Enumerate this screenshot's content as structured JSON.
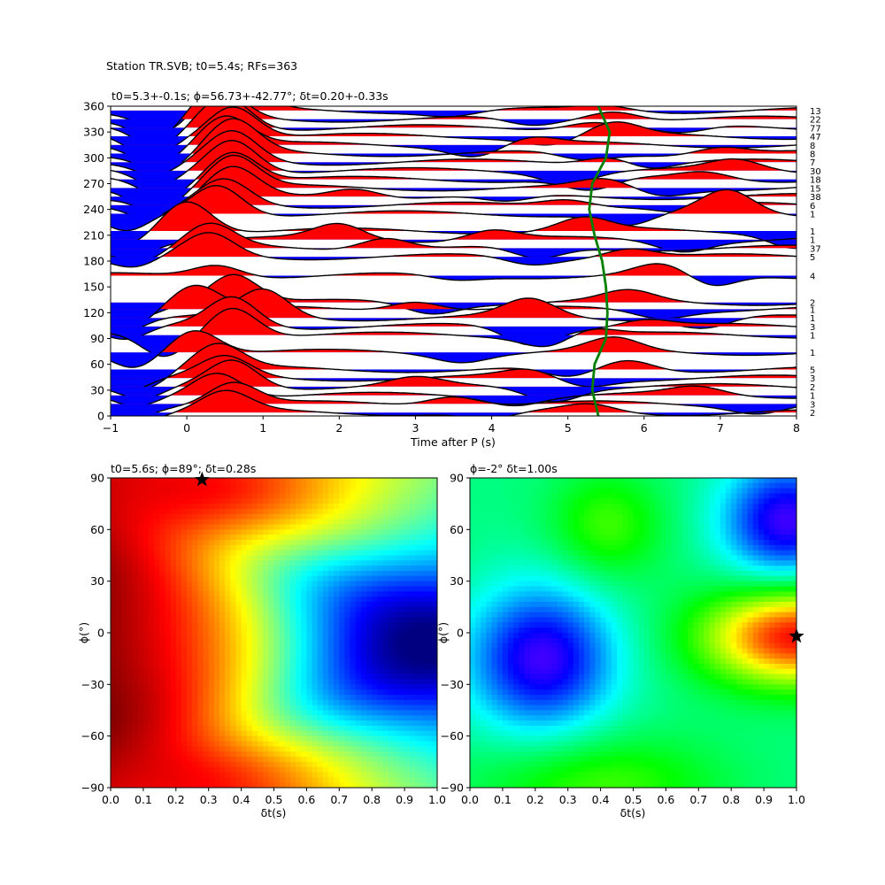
{
  "figure": {
    "suptitle": "Station TR.SVB; t0=5.4s; RFs=363"
  },
  "chart_data": [
    {
      "type": "line",
      "subtype": "receiver-function-wiggles",
      "title": "t0=5.3+-0.1s; ϕ=56.73+-42.77°; δt=0.20+-0.33s",
      "xlabel": "Time after P (s)",
      "ylabel": "",
      "xlim": [
        -1,
        8
      ],
      "ylim": [
        0,
        360
      ],
      "xticks": [
        -1,
        0,
        1,
        2,
        3,
        4,
        5,
        6,
        7,
        8
      ],
      "yticks": [
        0,
        30,
        60,
        90,
        120,
        150,
        180,
        210,
        240,
        270,
        300,
        330,
        360
      ],
      "fill_positive_color": "#ff0000",
      "fill_negative_color": "#0000ff",
      "t0_curve_color": "#008000",
      "traces": [
        {
          "baz": 355,
          "count": "13",
          "p1": [
            0.6,
            1.4
          ],
          "n1": [
            -0.3,
            -0.8
          ],
          "p2": [
            5.5,
            0.2
          ],
          "n2": [
            3.5,
            -0.2
          ]
        },
        {
          "baz": 345,
          "count": "22",
          "p1": [
            0.4,
            1.2
          ],
          "n1": [
            -0.4,
            -0.9
          ],
          "p2": [
            5.6,
            0.4
          ],
          "n2": [
            4.5,
            -0.3
          ]
        },
        {
          "baz": 335,
          "count": "77",
          "p1": [
            0.5,
            1.3
          ],
          "n1": [
            -0.4,
            -0.9
          ],
          "p2": [
            5.3,
            0.3
          ],
          "n2": [
            6.5,
            -0.3
          ]
        },
        {
          "baz": 325,
          "count": "47",
          "p1": [
            0.6,
            1.3
          ],
          "n1": [
            -0.5,
            -0.8
          ],
          "p2": [
            5.6,
            0.5
          ],
          "n2": [
            4.8,
            -0.3
          ]
        },
        {
          "baz": 315,
          "count": "8",
          "p1": [
            0.5,
            1.2
          ],
          "n1": [
            -0.4,
            -0.7
          ],
          "p2": [
            4.5,
            0.3
          ],
          "n2": [
            3.8,
            -0.4
          ]
        },
        {
          "baz": 305,
          "count": "8",
          "p1": [
            0.6,
            1.3
          ],
          "n1": [
            -0.3,
            -0.7
          ],
          "p2": [
            7.0,
            0.3
          ],
          "n2": [
            5.2,
            -0.3
          ]
        },
        {
          "baz": 295,
          "count": "7",
          "p1": [
            0.6,
            1.2
          ],
          "n1": [
            -0.4,
            -0.6
          ],
          "p2": [
            5.6,
            0.4
          ],
          "n2": [
            6.0,
            -0.3
          ]
        },
        {
          "baz": 285,
          "count": "30",
          "p1": [
            0.6,
            1.3
          ],
          "n1": [
            -0.4,
            -0.7
          ],
          "p2": [
            7.2,
            0.4
          ],
          "n2": [
            5.0,
            -0.4
          ]
        },
        {
          "baz": 275,
          "count": "18",
          "p1": [
            0.6,
            1.2
          ],
          "n1": [
            -0.3,
            -0.7
          ],
          "p2": [
            6.8,
            0.3
          ],
          "n2": [
            5.3,
            -0.5
          ]
        },
        {
          "baz": 265,
          "count": "15",
          "p1": [
            0.6,
            1.3
          ],
          "n1": [
            -0.4,
            -0.8
          ],
          "p2": [
            5.5,
            0.3
          ],
          "n2": [
            6.2,
            -0.3
          ]
        },
        {
          "baz": 255,
          "count": "38",
          "p1": [
            0.6,
            1.1
          ],
          "n1": [
            -0.3,
            -0.7
          ],
          "p2": [
            2.2,
            0.4
          ],
          "n2": [
            4.2,
            -0.3
          ]
        },
        {
          "baz": 245,
          "count": "6",
          "p1": [
            0.5,
            1.0
          ],
          "n1": [
            -0.5,
            -0.6
          ],
          "p2": [
            5.0,
            0.3
          ],
          "n2": [
            6.5,
            -0.3
          ]
        },
        {
          "baz": 235,
          "count": "1",
          "p1": [
            0.4,
            1.2
          ],
          "n1": [
            -0.8,
            -0.8
          ],
          "p2": [
            7.1,
            0.9
          ],
          "n2": [
            5.8,
            -0.5
          ]
        },
        {
          "baz": 215,
          "count": "1",
          "p1": [
            0.0,
            1.3
          ],
          "n1": [
            -0.8,
            -0.6
          ],
          "p2": [
            5.2,
            0.5
          ],
          "n2": [
            8.0,
            -0.6
          ]
        },
        {
          "baz": 205,
          "count": "1",
          "p1": [
            2.0,
            0.6
          ],
          "n1": [
            -0.8,
            -0.7
          ],
          "p2": [
            4.0,
            0.4
          ],
          "n2": [
            6.5,
            -0.4
          ]
        },
        {
          "baz": 195,
          "count": "37",
          "p1": [
            0.3,
            0.9
          ],
          "n1": [
            -0.6,
            -0.5
          ],
          "p2": [
            2.6,
            0.5
          ],
          "n2": [
            4.6,
            -0.5
          ]
        },
        {
          "baz": 185,
          "count": "5",
          "p1": [
            0.3,
            0.9
          ],
          "n1": [
            -0.7,
            -0.5
          ],
          "p2": [
            5.8,
            0.4
          ],
          "n2": [
            4.5,
            -0.3
          ]
        },
        {
          "baz": 163,
          "count": "4",
          "p1": [
            0.4,
            0.5
          ],
          "n1": [
            6.9,
            -0.5
          ],
          "p2": [
            6.2,
            0.4
          ],
          "n2": [
            3.5,
            -0.2
          ]
        },
        {
          "baz": 132,
          "count": "2",
          "p1": [
            0.6,
            1.2
          ],
          "n1": [
            -0.7,
            -0.6
          ],
          "p2": [
            5.8,
            0.4
          ],
          "n2": [
            3.2,
            -0.4
          ]
        },
        {
          "baz": 124,
          "count": "1",
          "p1": [
            0.1,
            1.0
          ],
          "n1": [
            -0.8,
            -0.7
          ],
          "p2": [
            3.0,
            0.4
          ],
          "n2": [
            6.2,
            -0.3
          ]
        },
        {
          "baz": 114,
          "count": "1",
          "p1": [
            1.0,
            1.1
          ],
          "n1": [
            -0.9,
            -0.6
          ],
          "p2": [
            4.5,
            0.7
          ],
          "n2": [
            6.8,
            -0.4
          ]
        },
        {
          "baz": 104,
          "count": "3",
          "p1": [
            0.6,
            1.2
          ],
          "n1": [
            -0.8,
            -0.6
          ],
          "p2": [
            6.0,
            0.3
          ],
          "n2": [
            4.5,
            -0.7
          ]
        },
        {
          "baz": 94,
          "count": "1",
          "p1": [
            0.6,
            1.2
          ],
          "n1": [
            -0.3,
            -0.9
          ],
          "p2": [
            5.2,
            0.4
          ],
          "n2": [
            4.8,
            -0.5
          ]
        },
        {
          "baz": 74,
          "count": "1",
          "p1": [
            0.1,
            1.0
          ],
          "n1": [
            -0.7,
            -0.6
          ],
          "p2": [
            5.6,
            0.5
          ],
          "n2": [
            3.6,
            -0.3
          ]
        },
        {
          "baz": 54,
          "count": "5",
          "p1": [
            0.4,
            1.0
          ],
          "n1": [
            -0.6,
            -0.7
          ],
          "p2": [
            5.8,
            0.4
          ],
          "n2": [
            5.0,
            -0.4
          ]
        },
        {
          "baz": 44,
          "count": "3",
          "p1": [
            0.5,
            0.8
          ],
          "n1": [
            -0.8,
            -0.5
          ],
          "p2": [
            4.5,
            0.3
          ],
          "n2": [
            5.2,
            -0.3
          ]
        },
        {
          "baz": 34,
          "count": "2",
          "p1": [
            0.6,
            1.1
          ],
          "n1": [
            -0.6,
            -0.6
          ],
          "p2": [
            3.0,
            0.3
          ],
          "n2": [
            4.8,
            -0.5
          ]
        },
        {
          "baz": 24,
          "count": "1",
          "p1": [
            0.4,
            1.0
          ],
          "n1": [
            -0.7,
            -0.5
          ],
          "p2": [
            6.7,
            0.3
          ],
          "n2": [
            4.3,
            -0.3
          ]
        },
        {
          "baz": 14,
          "count": "3",
          "p1": [
            0.6,
            0.9
          ],
          "n1": [
            -0.8,
            -0.6
          ],
          "p2": [
            3.5,
            0.4
          ],
          "n2": [
            7.5,
            -0.3
          ]
        },
        {
          "baz": 4,
          "count": "2",
          "p1": [
            0.5,
            0.8
          ],
          "n1": [
            -0.8,
            -0.5
          ],
          "p2": [
            5.3,
            0.3
          ],
          "n2": [
            4.0,
            -0.3
          ]
        }
      ],
      "t0_curve": {
        "baz": [
          0,
          30,
          60,
          90,
          120,
          150,
          180,
          210,
          240,
          270,
          300,
          330,
          360
        ],
        "time": [
          5.4,
          5.32,
          5.35,
          5.5,
          5.52,
          5.5,
          5.45,
          5.35,
          5.28,
          5.32,
          5.5,
          5.55,
          5.4
        ]
      }
    },
    {
      "type": "heatmap",
      "title": "t0=5.6s; ϕ=89°; δt=0.28s",
      "xlabel": "δt(s)",
      "ylabel": "ϕ(°)",
      "xlim": [
        0,
        1
      ],
      "ylim": [
        -90,
        90
      ],
      "xticks": [
        0.0,
        0.1,
        0.2,
        0.3,
        0.4,
        0.5,
        0.6,
        0.7,
        0.8,
        0.9,
        1.0
      ],
      "yticks": [
        -90,
        -60,
        -30,
        0,
        30,
        60,
        90
      ],
      "colormap": "jet",
      "best": {
        "dt": 0.28,
        "phi": 89
      },
      "colormap_field": {
        "base": 0.2,
        "terms": [
          {
            "type": "phiwave",
            "amp": 0.55,
            "ridge": 0.5,
            "width": 0.28
          },
          {
            "type": "blob",
            "amp": -0.3,
            "dt": 0.3,
            "phi": 85,
            "sdt": 0.25,
            "sphi": 30
          },
          {
            "type": "blob",
            "amp": -0.3,
            "dt": 0.3,
            "phi": -85,
            "sdt": 0.25,
            "sphi": 30
          },
          {
            "type": "blob",
            "amp": 0.35,
            "dt": 1.0,
            "phi": -8,
            "sdt": 0.3,
            "sphi": 45
          }
        ]
      }
    },
    {
      "type": "heatmap",
      "title": "ϕ=-2° δt=1.00s",
      "xlabel": "δt(s)",
      "ylabel": "ϕ(°)",
      "xlim": [
        0,
        1
      ],
      "ylim": [
        -90,
        90
      ],
      "xticks": [
        0.0,
        0.1,
        0.2,
        0.3,
        0.4,
        0.5,
        0.6,
        0.7,
        0.8,
        0.9,
        1.0
      ],
      "yticks": [
        -90,
        -60,
        -30,
        0,
        30,
        60,
        90
      ],
      "colormap": "gist_rainbow",
      "best": {
        "dt": 1.0,
        "phi": -2
      },
      "colormap_field": {
        "base": 0.5,
        "terms": [
          {
            "type": "blob",
            "amp": 0.35,
            "dt": 0.22,
            "phi": -15,
            "sdt": 0.16,
            "sphi": 30
          },
          {
            "type": "blob",
            "amp": 0.35,
            "dt": 0.97,
            "phi": 65,
            "sdt": 0.14,
            "sphi": 25
          },
          {
            "type": "blob",
            "amp": -0.5,
            "dt": 1.0,
            "phi": -2,
            "sdt": 0.2,
            "sphi": 20
          },
          {
            "type": "blob",
            "amp": -0.15,
            "dt": 0.42,
            "phi": 62,
            "sdt": 0.12,
            "sphi": 22
          },
          {
            "type": "blob",
            "amp": -0.15,
            "dt": 0.4,
            "phi": -88,
            "sdt": 0.25,
            "sphi": 20
          }
        ]
      }
    }
  ]
}
